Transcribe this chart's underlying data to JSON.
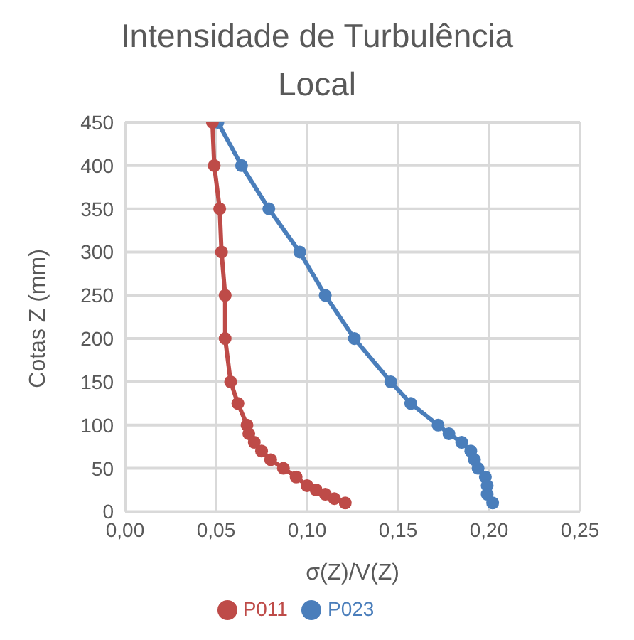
{
  "chart_data": {
    "type": "line",
    "title": "Intensidade de Turbulência Local",
    "xlabel": "σ(Z)/V(Z)",
    "ylabel": "Cotas Z (mm)",
    "xlim": [
      0,
      0.25
    ],
    "xticks": [
      {
        "value": 0,
        "label": "0,00"
      },
      {
        "value": 0.05,
        "label": "0,05"
      },
      {
        "value": 0.1,
        "label": "0,10"
      },
      {
        "value": 0.15,
        "label": "0,15"
      },
      {
        "value": 0.2,
        "label": "0,20"
      },
      {
        "value": 0.25,
        "label": "0,25"
      }
    ],
    "ylim": [
      0,
      450
    ],
    "yticks": [
      0,
      50,
      100,
      150,
      200,
      250,
      300,
      350,
      400,
      450
    ],
    "grid": true,
    "legend": "bottom",
    "marker": "circle",
    "line_style": "solid",
    "series": [
      {
        "name": "P023",
        "color": "#4a7ebb",
        "x": [
          0.051,
          0.064,
          0.079,
          0.096,
          0.11,
          0.126,
          0.146,
          0.157,
          0.172,
          0.178,
          0.185,
          0.19,
          0.192,
          0.194,
          0.198,
          0.199,
          0.199,
          0.202
        ],
        "values": [
          450,
          400,
          350,
          300,
          250,
          200,
          150,
          125,
          100,
          90,
          80,
          70,
          60,
          50,
          40,
          30,
          20,
          10
        ]
      },
      {
        "name": "P011",
        "color": "#be4b48",
        "x": [
          0.048,
          0.049,
          0.052,
          0.053,
          0.055,
          0.055,
          0.058,
          0.062,
          0.067,
          0.068,
          0.071,
          0.075,
          0.08,
          0.087,
          0.094,
          0.1,
          0.105,
          0.11,
          0.115,
          0.121
        ],
        "values": [
          450,
          400,
          350,
          300,
          250,
          200,
          150,
          125,
          100,
          90,
          80,
          70,
          60,
          50,
          40,
          30,
          25,
          20,
          15,
          10
        ]
      }
    ]
  }
}
